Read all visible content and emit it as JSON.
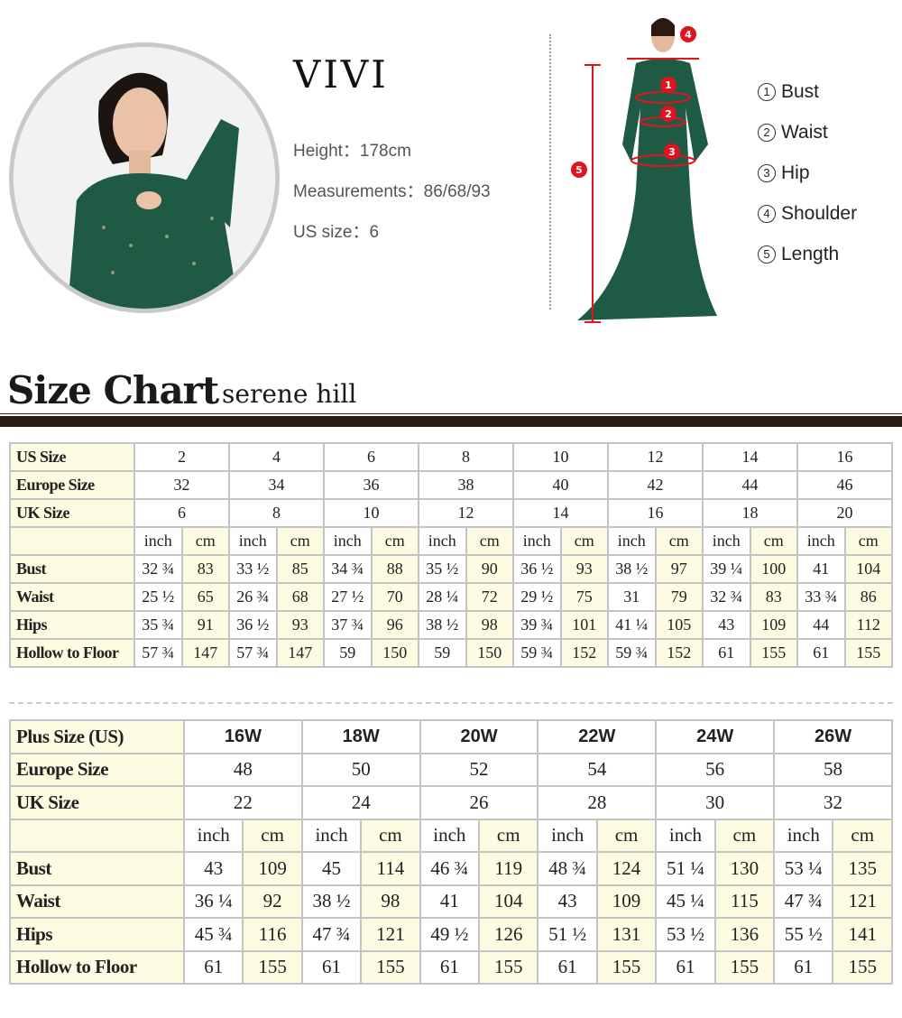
{
  "model": {
    "name": "VIVI",
    "height": "Height：178cm",
    "measurements": "Measurements：86/68/93",
    "us_size": "US size：6"
  },
  "measure_legend": [
    {
      "num": "1",
      "label": "Bust"
    },
    {
      "num": "2",
      "label": "Waist"
    },
    {
      "num": "3",
      "label": "Hip"
    },
    {
      "num": "4",
      "label": "Shoulder"
    },
    {
      "num": "5",
      "label": "Length"
    }
  ],
  "colors": {
    "marker_red": "#e0141e",
    "dress_green": "#1f5a45",
    "accent_bar": "#2a1b12",
    "label_bg": "#fdfbe2"
  },
  "chart": {
    "title": "Size Chart",
    "brand": "serene hill"
  },
  "standard_table": {
    "size_rows": [
      {
        "label": "US Size",
        "values": [
          "2",
          "4",
          "6",
          "8",
          "10",
          "12",
          "14",
          "16"
        ]
      },
      {
        "label": "Europe Size",
        "values": [
          "32",
          "34",
          "36",
          "38",
          "40",
          "42",
          "44",
          "46"
        ]
      },
      {
        "label": "UK Size",
        "values": [
          "6",
          "8",
          "10",
          "12",
          "14",
          "16",
          "18",
          "20"
        ]
      }
    ],
    "units": [
      "inch",
      "cm"
    ],
    "measure_rows": [
      {
        "label": "Bust",
        "values": [
          "32 ¾",
          "83",
          "33 ½",
          "85",
          "34 ¾",
          "88",
          "35 ½",
          "90",
          "36 ½",
          "93",
          "38 ½",
          "97",
          "39 ¼",
          "100",
          "41",
          "104"
        ]
      },
      {
        "label": "Waist",
        "values": [
          "25 ½",
          "65",
          "26 ¾",
          "68",
          "27 ½",
          "70",
          "28 ¼",
          "72",
          "29 ½",
          "75",
          "31",
          "79",
          "32 ¾",
          "83",
          "33 ¾",
          "86"
        ]
      },
      {
        "label": "Hips",
        "values": [
          "35 ¾",
          "91",
          "36 ½",
          "93",
          "37 ¾",
          "96",
          "38 ½",
          "98",
          "39 ¾",
          "101",
          "41 ¼",
          "105",
          "43",
          "109",
          "44",
          "112"
        ]
      },
      {
        "label": "Hollow to Floor",
        "values": [
          "57 ¾",
          "147",
          "57 ¾",
          "147",
          "59",
          "150",
          "59",
          "150",
          "59 ¾",
          "152",
          "59 ¾",
          "152",
          "61",
          "155",
          "61",
          "155"
        ]
      }
    ]
  },
  "plus_table": {
    "size_rows": [
      {
        "label": "Plus Size (US)",
        "values": [
          "16W",
          "18W",
          "20W",
          "22W",
          "24W",
          "26W"
        ]
      },
      {
        "label": "Europe Size",
        "values": [
          "48",
          "50",
          "52",
          "54",
          "56",
          "58"
        ]
      },
      {
        "label": "UK Size",
        "values": [
          "22",
          "24",
          "26",
          "28",
          "30",
          "32"
        ]
      }
    ],
    "units": [
      "inch",
      "cm"
    ],
    "measure_rows": [
      {
        "label": "Bust",
        "values": [
          "43",
          "109",
          "45",
          "114",
          "46 ¾",
          "119",
          "48 ¾",
          "124",
          "51 ¼",
          "130",
          "53 ¼",
          "135"
        ]
      },
      {
        "label": "Waist",
        "values": [
          "36 ¼",
          "92",
          "38 ½",
          "98",
          "41",
          "104",
          "43",
          "109",
          "45 ¼",
          "115",
          "47 ¾",
          "121"
        ]
      },
      {
        "label": "Hips",
        "values": [
          "45 ¾",
          "116",
          "47 ¾",
          "121",
          "49 ½",
          "126",
          "51 ½",
          "131",
          "53 ½",
          "136",
          "55 ½",
          "141"
        ]
      },
      {
        "label": "Hollow to Floor",
        "values": [
          "61",
          "155",
          "61",
          "155",
          "61",
          "155",
          "61",
          "155",
          "61",
          "155",
          "61",
          "155"
        ]
      }
    ]
  }
}
